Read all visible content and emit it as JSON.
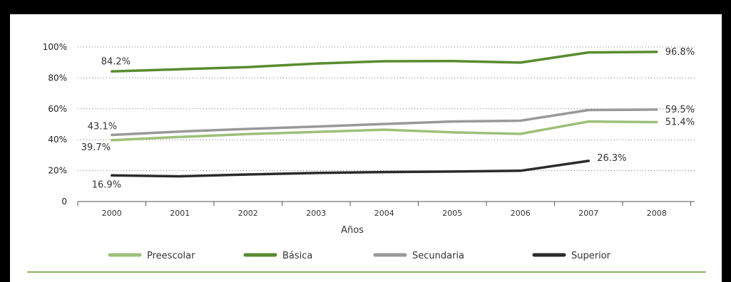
{
  "chart_data": {
    "type": "line",
    "xlabel": "Años",
    "ylabel": "",
    "title": "",
    "x": [
      "2000",
      "2001",
      "2002",
      "2003",
      "2004",
      "2005",
      "2006",
      "2007",
      "2008"
    ],
    "yticks": [
      "0",
      "20%",
      "40%",
      "60%",
      "80%",
      "100%"
    ],
    "ylim": [
      0,
      100
    ],
    "grid": "horizontal-dotted",
    "legend": "bottom",
    "series": [
      {
        "name": "Preescolar",
        "color": "#9dc07a",
        "values": [
          39.7,
          41.8,
          43.7,
          45.0,
          46.5,
          44.8,
          43.8,
          51.8,
          51.4
        ]
      },
      {
        "name": "Básica",
        "color": "#5a8b2e",
        "values": [
          84.2,
          85.6,
          87.0,
          89.3,
          90.8,
          90.9,
          89.9,
          96.5,
          96.8
        ]
      },
      {
        "name": "Secundaria",
        "color": "#999999",
        "values": [
          43.1,
          45.3,
          47.0,
          48.5,
          50.2,
          51.8,
          52.3,
          59.2,
          59.5
        ]
      },
      {
        "name": "Superior",
        "color": "#2b2b2b",
        "values": [
          16.9,
          16.3,
          17.5,
          18.5,
          19.1,
          19.4,
          19.9,
          26.3,
          null
        ]
      }
    ],
    "data_labels": [
      {
        "series": "Básica",
        "index": 0,
        "text": "84.2%"
      },
      {
        "series": "Básica",
        "index": 8,
        "text": "96.8%"
      },
      {
        "series": "Secundaria",
        "index": 0,
        "text": "43.1%"
      },
      {
        "series": "Secundaria",
        "index": 8,
        "text": "59.5%"
      },
      {
        "series": "Preescolar",
        "index": 0,
        "text": "39.7%"
      },
      {
        "series": "Preescolar",
        "index": 8,
        "text": "51.4%"
      },
      {
        "series": "Superior",
        "index": 0,
        "text": "16.9%"
      },
      {
        "series": "Superior",
        "index": 7,
        "text": "26.3%"
      }
    ]
  }
}
